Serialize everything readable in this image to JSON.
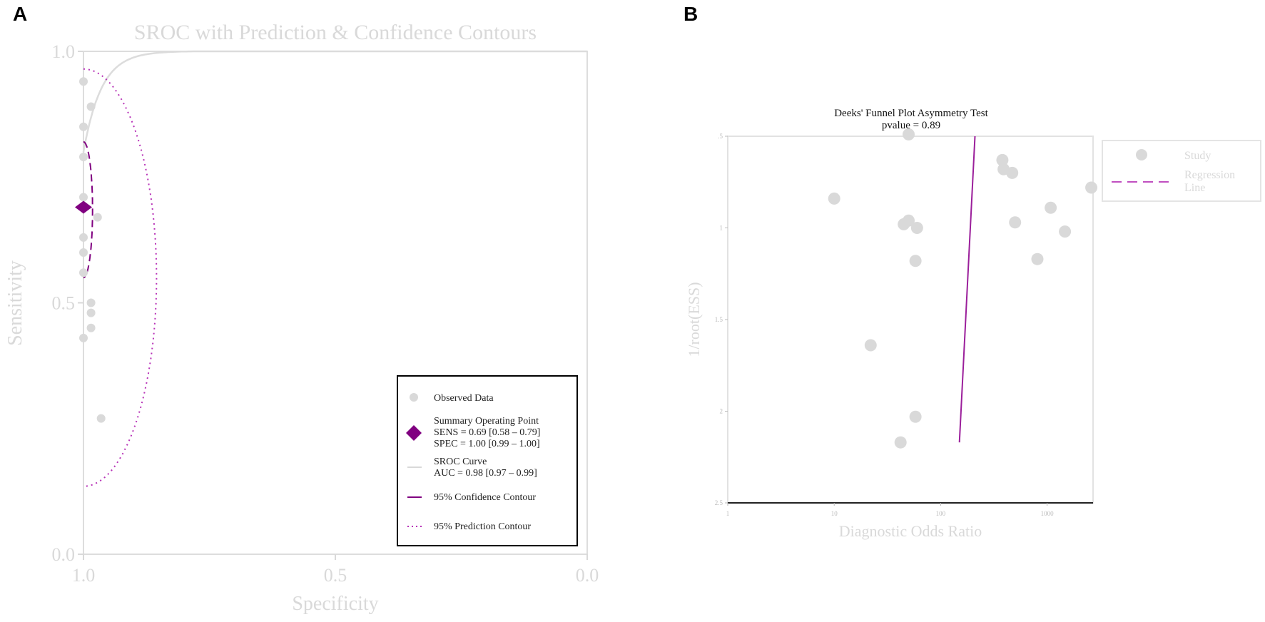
{
  "panels": {
    "a_label": "A",
    "b_label": "B"
  },
  "chart_data": [
    {
      "type": "scatter",
      "title": "SROC with Prediction & Confidence Contours",
      "xlabel": "Specificity",
      "ylabel": "Sensitivity",
      "x_reversed": true,
      "xlim": [
        1.0,
        0.0
      ],
      "ylim": [
        0.0,
        1.0
      ],
      "xticks": [
        "1.0",
        "0.5",
        "0.0"
      ],
      "yticks": [
        "0.0",
        "0.5",
        "1.0"
      ],
      "grid": false,
      "legend_position": "bottom-right",
      "observed": {
        "x": [
          1.0,
          1.0,
          0.985,
          1.0,
          1.0,
          0.972,
          1.0,
          1.0,
          1.0,
          0.985,
          0.985,
          0.985,
          1.0,
          0.965
        ],
        "y": [
          0.94,
          0.85,
          0.89,
          0.79,
          0.71,
          0.67,
          0.63,
          0.6,
          0.56,
          0.5,
          0.48,
          0.45,
          0.43,
          0.27
        ]
      },
      "summary_point": {
        "spec": 1.0,
        "sens": 0.69
      },
      "colors": {
        "observed": "#d9d9d9",
        "summary": "#800080",
        "sroc_curve": "#d9d9d9",
        "confidence": "#800080",
        "prediction": "#b833b8",
        "axes": "#d9d9d9"
      },
      "legend": [
        {
          "key": "observed",
          "lines": [
            "Observed Data"
          ]
        },
        {
          "key": "summary",
          "lines": [
            "Summary Operating Point",
            "SENS = 0.69 [0.58 – 0.79]",
            "SPEC = 1.00 [0.99 – 1.00]"
          ]
        },
        {
          "key": "sroc",
          "lines": [
            "SROC Curve",
            "AUC = 0.98 [0.97 – 0.99]"
          ]
        },
        {
          "key": "confidence",
          "lines": [
            "95% Confidence Contour"
          ]
        },
        {
          "key": "prediction",
          "lines": [
            "95% Prediction Contour"
          ]
        }
      ]
    },
    {
      "type": "scatter",
      "title": "Deeks' Funnel Plot Asymmetry Test",
      "subtitle": "pvalue = 0.89",
      "xlabel": "Diagnostic Odds Ratio",
      "ylabel": "1/root(ESS)",
      "x_scale": "log",
      "y_reversed": true,
      "xlim": [
        1,
        2700
      ],
      "ylim": [
        2.5,
        0.5
      ],
      "xticks": [
        {
          "value": 1,
          "label": "1"
        },
        {
          "value": 10,
          "label": "10"
        },
        {
          "value": 100,
          "label": "100"
        },
        {
          "value": 1000,
          "label": "1000"
        }
      ],
      "yticks": [
        {
          "value": 0.5,
          "label": ".5"
        },
        {
          "value": 1.0,
          "label": "1"
        },
        {
          "value": 1.5,
          "label": "1.5"
        },
        {
          "value": 2.0,
          "label": "2"
        },
        {
          "value": 2.5,
          "label": "2.5"
        }
      ],
      "grid": false,
      "legend_position": "top-right",
      "studies": {
        "x": [
          50,
          10,
          380,
          390,
          470,
          2600,
          45,
          50,
          60,
          1080,
          500,
          1470,
          58,
          810,
          22,
          58,
          42
        ],
        "y": [
          0.49,
          0.84,
          0.63,
          0.68,
          0.7,
          0.78,
          0.98,
          0.96,
          1.0,
          0.89,
          0.97,
          1.02,
          1.18,
          1.17,
          1.64,
          2.03,
          2.17
        ]
      },
      "regression_line": {
        "x": [
          150,
          210
        ],
        "y": [
          2.17,
          0.5
        ]
      },
      "colors": {
        "study": "#d9d9d9",
        "regression": "#9b1f9b",
        "axes": "#d9d9d9"
      },
      "legend": [
        {
          "key": "study",
          "lines": [
            "Study"
          ]
        },
        {
          "key": "regression",
          "lines": [
            "Regression",
            "Line"
          ]
        }
      ]
    }
  ]
}
